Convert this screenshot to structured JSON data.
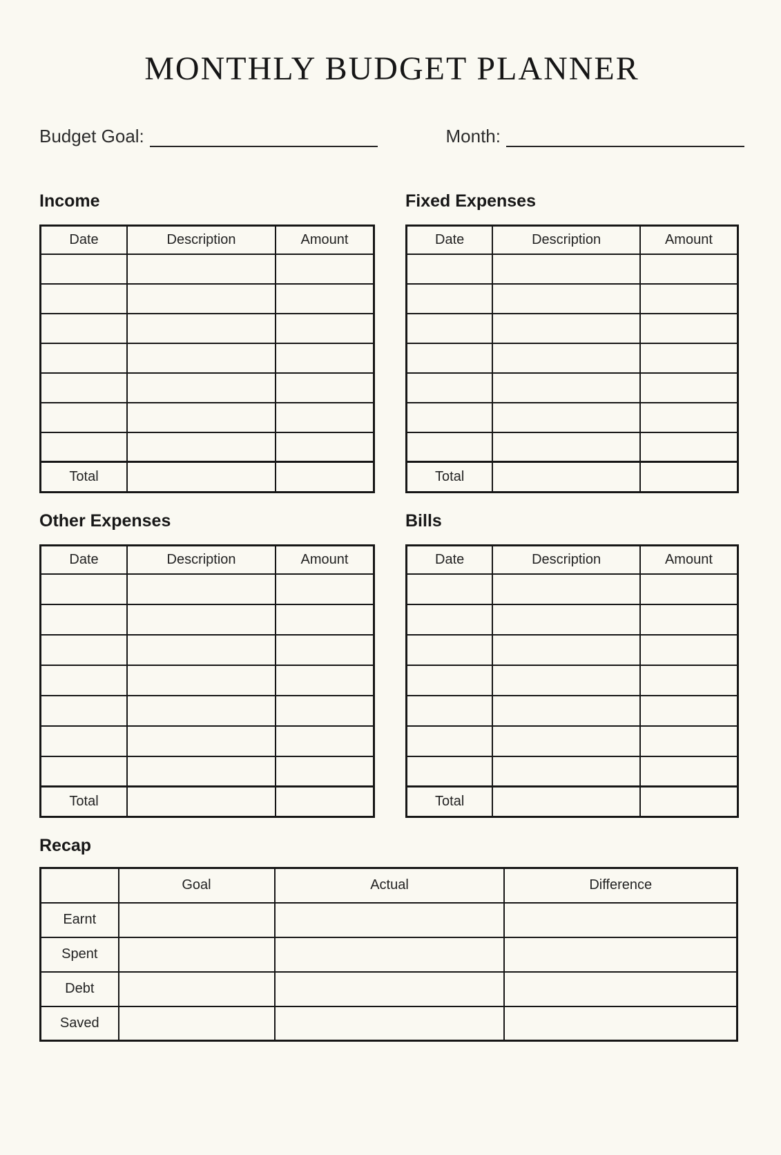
{
  "page": {
    "title": "MONTHLY BUDGET PLANNER",
    "background_color": "#faf9f2",
    "text_color": "#1c1c1c",
    "border_color": "#161616"
  },
  "fields": {
    "budget_goal_label": "Budget Goal:",
    "budget_goal_value": "",
    "month_label": "Month:",
    "month_value": ""
  },
  "sections": {
    "income": {
      "title": "Income",
      "headers": [
        "Date",
        "Description",
        "Amount"
      ],
      "empty_rows": 7,
      "total_label": "Total"
    },
    "fixed_expenses": {
      "title": "Fixed Expenses",
      "headers": [
        "Date",
        "Description",
        "Amount"
      ],
      "empty_rows": 7,
      "total_label": "Total"
    },
    "other_expenses": {
      "title": "Other Expenses",
      "headers": [
        "Date",
        "Description",
        "Amount"
      ],
      "empty_rows": 7,
      "total_label": "Total"
    },
    "bills": {
      "title": "Bills",
      "headers": [
        "Date",
        "Description",
        "Amount"
      ],
      "empty_rows": 7,
      "total_label": "Total"
    },
    "recap": {
      "title": "Recap",
      "headers": [
        "",
        "Goal",
        "Actual",
        "Difference"
      ],
      "row_labels": [
        "Earnt",
        "Spent",
        "Debt",
        "Saved"
      ]
    }
  }
}
